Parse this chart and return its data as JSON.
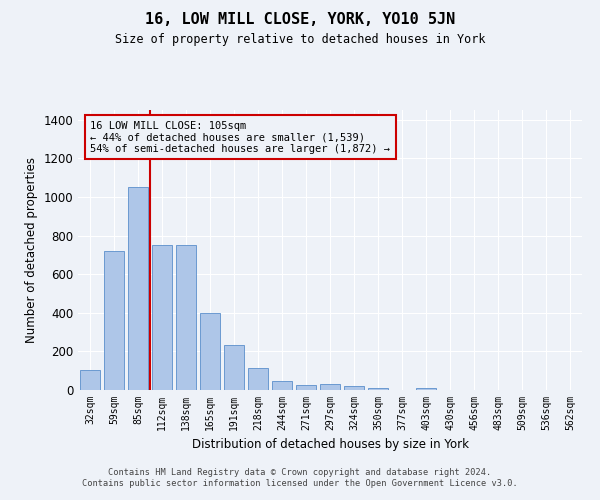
{
  "title": "16, LOW MILL CLOSE, YORK, YO10 5JN",
  "subtitle": "Size of property relative to detached houses in York",
  "xlabel": "Distribution of detached houses by size in York",
  "ylabel": "Number of detached properties",
  "footer_line1": "Contains HM Land Registry data © Crown copyright and database right 2024.",
  "footer_line2": "Contains public sector information licensed under the Open Government Licence v3.0.",
  "categories": [
    "32sqm",
    "59sqm",
    "85sqm",
    "112sqm",
    "138sqm",
    "165sqm",
    "191sqm",
    "218sqm",
    "244sqm",
    "271sqm",
    "297sqm",
    "324sqm",
    "350sqm",
    "377sqm",
    "403sqm",
    "430sqm",
    "456sqm",
    "483sqm",
    "509sqm",
    "536sqm",
    "562sqm"
  ],
  "values": [
    105,
    720,
    1050,
    750,
    750,
    400,
    235,
    115,
    45,
    25,
    30,
    20,
    10,
    0,
    10,
    0,
    0,
    0,
    0,
    0,
    0
  ],
  "bar_color": "#aec6e8",
  "bar_edge_color": "#5b8fcc",
  "ylim": [
    0,
    1450
  ],
  "yticks": [
    0,
    200,
    400,
    600,
    800,
    1000,
    1200,
    1400
  ],
  "property_line_x": 2.5,
  "property_line_color": "#cc0000",
  "annotation_title": "16 LOW MILL CLOSE: 105sqm",
  "annotation_line1": "← 44% of detached houses are smaller (1,539)",
  "annotation_line2": "54% of semi-detached houses are larger (1,872) →",
  "annotation_box_color": "#cc0000",
  "background_color": "#eef2f8",
  "grid_color": "#ffffff"
}
